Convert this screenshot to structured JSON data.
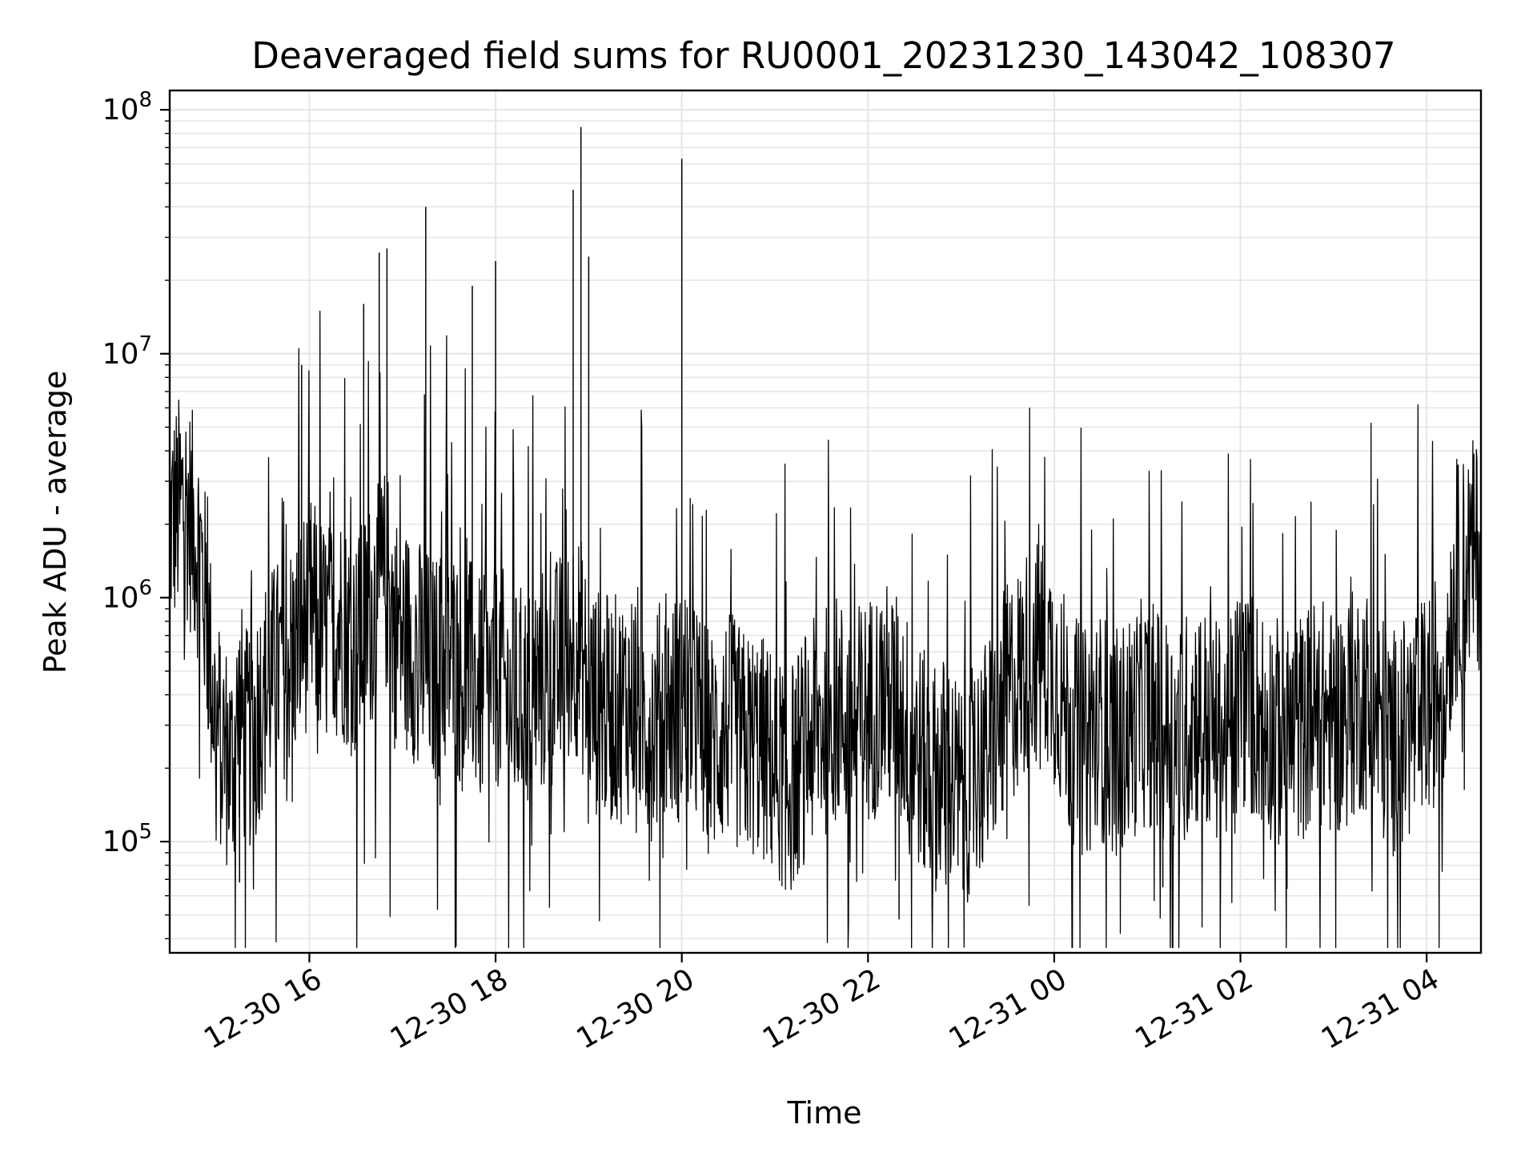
{
  "chart_data": {
    "type": "line",
    "title": "Deaveraged field sums for RU0001_20231230_143042_108307",
    "xlabel": "Time",
    "ylabel": "Peak ADU - average",
    "yscale": "log",
    "ylim": [
      35000,
      120000000
    ],
    "xlim": [
      "12-30 14:30",
      "12-31 04:35"
    ],
    "x_tick_labels": [
      "12-30 16",
      "12-30 18",
      "12-30 20",
      "12-30 22",
      "12-31 00",
      "12-31 02",
      "12-31 04"
    ],
    "y_tick_labels": [
      {
        "base": "10",
        "exp": "5"
      },
      {
        "base": "10",
        "exp": "6"
      },
      {
        "base": "10",
        "exp": "7"
      },
      {
        "base": "10",
        "exp": "8"
      }
    ],
    "grid": true,
    "line_color": "#000000",
    "grid_color": "#e6e6e6",
    "series": [
      {
        "x": [
          "12-30 14:30",
          "12-30 14:40",
          "12-30 14:50",
          "12-30 15:00",
          "12-30 15:10",
          "12-30 15:15",
          "12-30 15:20",
          "12-30 15:30",
          "12-30 15:40",
          "12-30 15:50",
          "12-30 16:00",
          "12-30 16:10",
          "12-30 16:20",
          "12-30 16:30",
          "12-30 16:40",
          "12-30 16:45",
          "12-30 16:50",
          "12-30 16:55",
          "12-30 17:00",
          "12-30 17:10",
          "12-30 17:20",
          "12-30 17:30",
          "12-30 17:40",
          "12-30 17:45",
          "12-30 17:50",
          "12-30 18:00",
          "12-30 18:02",
          "12-30 18:10",
          "12-30 18:20",
          "12-30 18:30",
          "12-30 18:40",
          "12-30 18:45",
          "12-30 18:50",
          "12-30 18:55",
          "12-30 19:00",
          "12-30 19:10",
          "12-30 19:20",
          "12-30 19:30",
          "12-30 19:40",
          "12-30 19:50",
          "12-30 20:00",
          "12-30 20:02",
          "12-30 20:10",
          "12-30 20:20",
          "12-30 20:30",
          "12-30 20:40",
          "12-30 20:50",
          "12-30 21:00",
          "12-30 21:10",
          "12-30 21:20",
          "12-30 21:30",
          "12-30 21:40",
          "12-30 21:50",
          "12-30 22:00",
          "12-30 22:10",
          "12-30 22:20",
          "12-30 22:30",
          "12-30 22:40",
          "12-30 22:50",
          "12-30 23:00",
          "12-30 23:10",
          "12-30 23:20",
          "12-30 23:30",
          "12-30 23:40",
          "12-30 23:50",
          "12-31 00:00",
          "12-31 00:10",
          "12-31 00:20",
          "12-31 00:30",
          "12-31 00:40",
          "12-31 00:50",
          "12-31 01:00",
          "12-31 01:10",
          "12-31 01:20",
          "12-31 01:30",
          "12-31 01:40",
          "12-31 01:50",
          "12-31 02:00",
          "12-31 02:10",
          "12-31 02:20",
          "12-31 02:30",
          "12-31 02:40",
          "12-31 02:50",
          "12-31 03:00",
          "12-31 03:10",
          "12-31 03:20",
          "12-31 03:30",
          "12-31 03:40",
          "12-31 03:50",
          "12-31 04:00",
          "12-31 04:10",
          "12-31 04:20",
          "12-31 04:30"
        ],
        "y": [
          2000000,
          2500000,
          1500000,
          300000,
          200000,
          350000,
          250000,
          400000,
          500000,
          600000,
          900000,
          700000,
          800000,
          600000,
          900000,
          1000000,
          1200000,
          800000,
          700000,
          600000,
          500000,
          600000,
          450000,
          500000,
          400000,
          450000,
          500000,
          350000,
          400000,
          450000,
          500000,
          550000,
          700000,
          600000,
          400000,
          350000,
          350000,
          400000,
          300000,
          350000,
          350000,
          400000,
          300000,
          250000,
          300000,
          250000,
          250000,
          200000,
          180000,
          250000,
          300000,
          350000,
          300000,
          350000,
          400000,
          350000,
          250000,
          180000,
          200000,
          150000,
          200000,
          250000,
          400000,
          500000,
          700000,
          500000,
          300000,
          250000,
          300000,
          250000,
          300000,
          350000,
          300000,
          250000,
          350000,
          300000,
          250000,
          400000,
          350000,
          300000,
          250000,
          300000,
          350000,
          300000,
          350000,
          400000,
          300000,
          250000,
          300000,
          350000,
          500000,
          1200000,
          1500000
        ]
      }
    ],
    "spikes": [
      {
        "x": "12-30 15:55",
        "y": 9000000
      },
      {
        "x": "12-30 16:35",
        "y": 16000000
      },
      {
        "x": "12-30 16:45",
        "y": 26000000
      },
      {
        "x": "12-30 16:50",
        "y": 27000000
      },
      {
        "x": "12-30 17:15",
        "y": 40000000
      },
      {
        "x": "12-30 17:45",
        "y": 19000000
      },
      {
        "x": "12-30 18:00",
        "y": 24000000
      },
      {
        "x": "12-30 18:50",
        "y": 47000000
      },
      {
        "x": "12-30 18:55",
        "y": 85000000
      },
      {
        "x": "12-30 19:00",
        "y": 25000000
      },
      {
        "x": "12-30 20:00",
        "y": 63000000
      },
      {
        "x": "12-30 22:20",
        "y": 48000
      },
      {
        "x": "12-30 15:15",
        "y": 68000
      },
      {
        "x": "12-31 01:10",
        "y": 65000
      },
      {
        "x": "12-31 02:30",
        "y": 64000
      }
    ]
  }
}
